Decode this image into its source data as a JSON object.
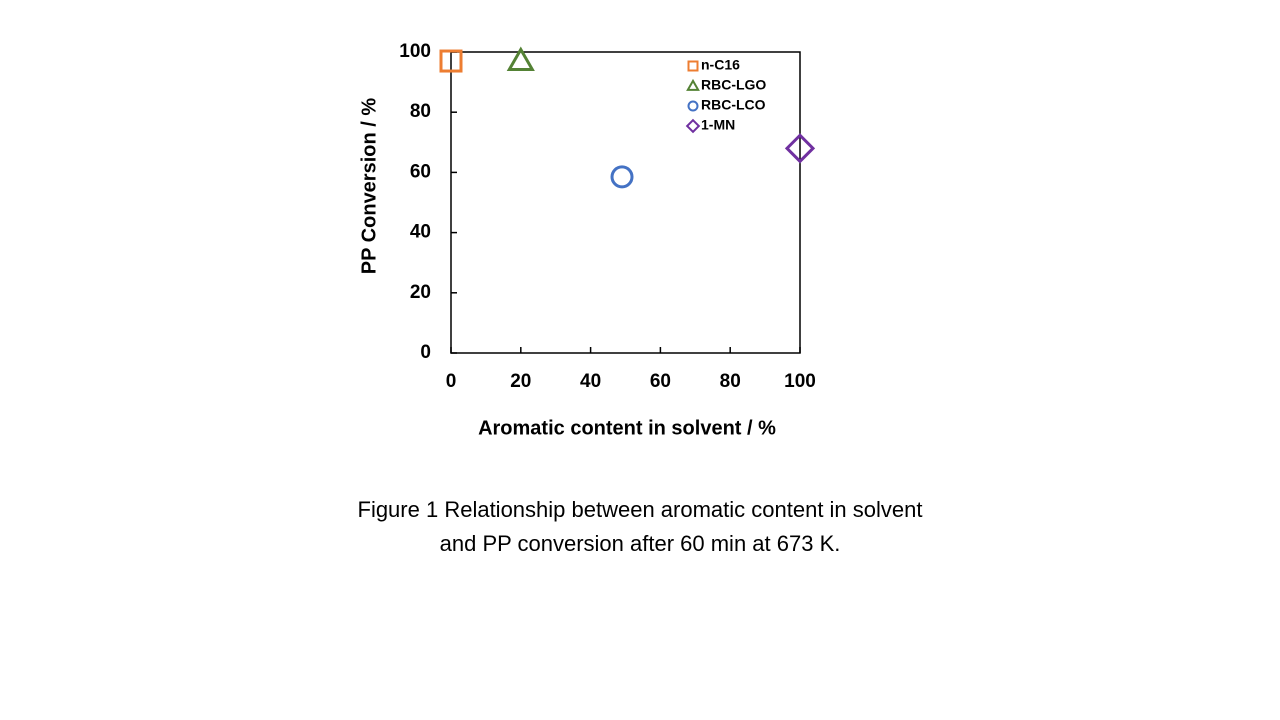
{
  "chart_data": {
    "type": "scatter",
    "xlabel": "Aromatic content in solvent / %",
    "ylabel": "PP Conversion / %",
    "xlim": [
      0,
      100
    ],
    "xticks": [
      0,
      20,
      40,
      60,
      80,
      100
    ],
    "ylim": [
      0,
      100
    ],
    "yticks": [
      0,
      20,
      40,
      60,
      80,
      100
    ],
    "legend": "upper right",
    "series": [
      {
        "name": "n-C16",
        "color": "#ED7D31",
        "marker": "square",
        "x": [
          0
        ],
        "values": [
          97
        ]
      },
      {
        "name": "RBC-LGO",
        "color": "#548235",
        "marker": "triangle",
        "x": [
          20
        ],
        "values": [
          97
        ]
      },
      {
        "name": "RBC-LCO",
        "color": "#4472C4",
        "marker": "circle",
        "x": [
          49
        ],
        "values": [
          58.5
        ]
      },
      {
        "name": "1-MN",
        "color": "#7030A0",
        "marker": "diamond",
        "x": [
          100
        ],
        "values": [
          68
        ]
      }
    ],
    "caption": [
      "Figure 1 Relationship between aromatic content in solvent",
      "and PP conversion after 60 min at 673 K."
    ]
  }
}
